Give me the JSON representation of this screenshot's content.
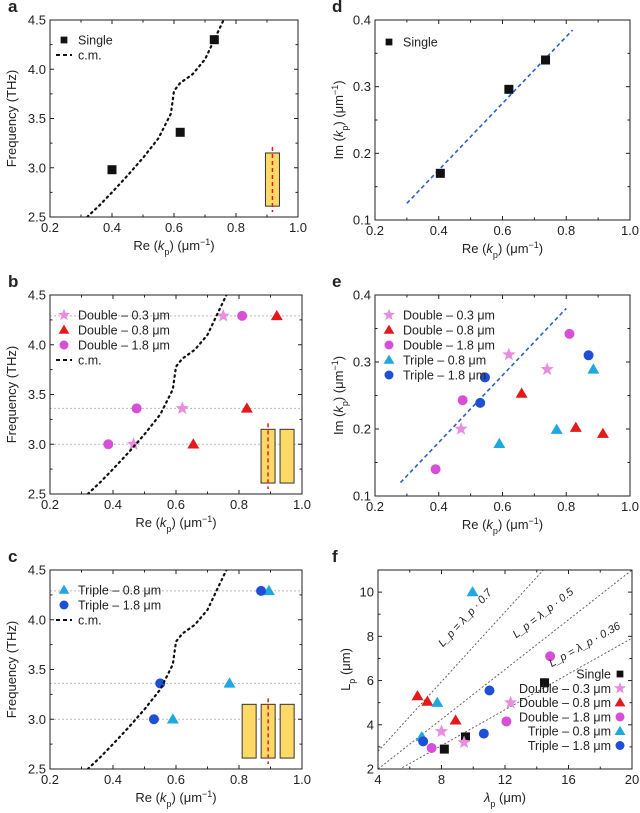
{
  "colors": {
    "single": "#111111",
    "double_03": "#e88ee0",
    "double_08": "#e31a1c",
    "double_18": "#d64fd6",
    "triple_08": "#1fa8e0",
    "triple_18": "#1f4fd6",
    "cm_line": "#111111",
    "fit_line": "#2b5fc4",
    "gridline": "#bbbbbb",
    "antenna_fill": "#ffd966",
    "antenna_stroke": "#333333",
    "antenna_dash": "#e31a1c"
  },
  "chart_data": [
    {
      "panel": "a",
      "type": "scatter",
      "xlabel": "Re (k_p) (μm⁻¹)",
      "ylabel": "Frequency (THz)",
      "xlim": [
        0.2,
        1.0
      ],
      "ylim": [
        2.5,
        4.5
      ],
      "xticks": [
        "0.2",
        "0.4",
        "0.6",
        "0.8",
        "1.0"
      ],
      "yticks": [
        "2.5",
        "3.0",
        "3.5",
        "4.0",
        "4.5"
      ],
      "legend_position": "top-left",
      "antenna_bars": 1,
      "series": [
        {
          "name": "Single",
          "marker": "square",
          "color_key": "single",
          "x": [
            0.4,
            0.62,
            0.73
          ],
          "y": [
            2.98,
            3.36,
            4.3
          ]
        },
        {
          "name": "c.m.",
          "marker": "dotted-line",
          "color_key": "cm_line",
          "x": [
            0.32,
            0.36,
            0.4,
            0.45,
            0.5,
            0.55,
            0.59,
            0.6,
            0.62,
            0.66,
            0.7,
            0.73,
            0.76
          ],
          "y": [
            2.5,
            2.62,
            2.75,
            2.92,
            3.1,
            3.3,
            3.55,
            3.78,
            3.86,
            3.95,
            4.1,
            4.3,
            4.5
          ]
        }
      ]
    },
    {
      "panel": "b",
      "type": "scatter",
      "xlabel": "Re (k_p) (μm⁻¹)",
      "ylabel": "Frequency (THz)",
      "xlim": [
        0.2,
        1.0
      ],
      "ylim": [
        2.5,
        4.5
      ],
      "xticks": [
        "0.2",
        "0.4",
        "0.6",
        "0.8",
        "1.0"
      ],
      "yticks": [
        "2.5",
        "3.0",
        "3.5",
        "4.0",
        "4.5"
      ],
      "legend_position": "top-left",
      "hlines": [
        3.0,
        3.36,
        4.29
      ],
      "antenna_bars": 2,
      "series": [
        {
          "name": "Double – 0.3 μm",
          "marker": "star",
          "color_key": "double_03",
          "x": [
            0.465,
            0.62,
            0.75
          ],
          "y": [
            3.0,
            3.36,
            4.29
          ]
        },
        {
          "name": "Double – 0.8 μm",
          "marker": "triangle",
          "color_key": "double_08",
          "x": [
            0.655,
            0.825,
            0.92
          ],
          "y": [
            3.0,
            3.36,
            4.29
          ]
        },
        {
          "name": "Double – 1.8 μm",
          "marker": "circle",
          "color_key": "double_18",
          "x": [
            0.385,
            0.475,
            0.81
          ],
          "y": [
            3.0,
            3.36,
            4.29
          ]
        },
        {
          "name": "c.m.",
          "marker": "dotted-line",
          "color_key": "cm_line",
          "x": [
            0.32,
            0.36,
            0.4,
            0.45,
            0.5,
            0.55,
            0.59,
            0.6,
            0.62,
            0.66,
            0.7,
            0.73,
            0.76
          ],
          "y": [
            2.5,
            2.62,
            2.75,
            2.92,
            3.1,
            3.3,
            3.55,
            3.78,
            3.86,
            3.95,
            4.1,
            4.3,
            4.5
          ]
        }
      ]
    },
    {
      "panel": "c",
      "type": "scatter",
      "xlabel": "Re (k_p) (μm⁻¹)",
      "ylabel": "Frequency (THz)",
      "xlim": [
        0.2,
        1.0
      ],
      "ylim": [
        2.5,
        4.5
      ],
      "xticks": [
        "0.2",
        "0.4",
        "0.6",
        "0.8",
        "1.0"
      ],
      "yticks": [
        "2.5",
        "3.0",
        "3.5",
        "4.0",
        "4.5"
      ],
      "legend_position": "top-left",
      "hlines": [
        3.0,
        3.36,
        4.29
      ],
      "antenna_bars": 3,
      "series": [
        {
          "name": "Triple – 0.8 μm",
          "marker": "triangle",
          "color_key": "triple_08",
          "x": [
            0.59,
            0.77,
            0.895
          ],
          "y": [
            3.0,
            3.36,
            4.29
          ]
        },
        {
          "name": "Triple – 1.8 μm",
          "marker": "circle",
          "color_key": "triple_18",
          "x": [
            0.53,
            0.55,
            0.87
          ],
          "y": [
            3.0,
            3.36,
            4.29
          ]
        },
        {
          "name": "c.m.",
          "marker": "dotted-line",
          "color_key": "cm_line",
          "x": [
            0.32,
            0.36,
            0.4,
            0.45,
            0.5,
            0.55,
            0.59,
            0.6,
            0.62,
            0.66,
            0.7,
            0.73,
            0.76
          ],
          "y": [
            2.5,
            2.62,
            2.75,
            2.92,
            3.1,
            3.3,
            3.55,
            3.78,
            3.86,
            3.95,
            4.1,
            4.3,
            4.5
          ]
        }
      ]
    },
    {
      "panel": "d",
      "type": "scatter",
      "xlabel": "Re (k_p) (μm⁻¹)",
      "ylabel": "Im (k_p) (μm⁻¹)",
      "xlim": [
        0.2,
        1.0
      ],
      "ylim": [
        0.1,
        0.4
      ],
      "xticks": [
        "0.2",
        "0.4",
        "0.6",
        "0.8",
        "1.0"
      ],
      "yticks": [
        "0.1",
        "0.2",
        "0.3",
        "0.4"
      ],
      "legend_position": "top-left",
      "fit_line": {
        "x": [
          0.3,
          0.82
        ],
        "y": [
          0.125,
          0.385
        ]
      },
      "series": [
        {
          "name": "Single",
          "marker": "square",
          "color_key": "single",
          "x": [
            0.405,
            0.62,
            0.735
          ],
          "y": [
            0.17,
            0.296,
            0.34
          ]
        }
      ]
    },
    {
      "panel": "e",
      "type": "scatter",
      "xlabel": "Re (k_p) (μm⁻¹)",
      "ylabel": "Im (k_p) (μm⁻¹)",
      "xlim": [
        0.2,
        1.0
      ],
      "ylim": [
        0.1,
        0.4
      ],
      "xticks": [
        "0.2",
        "0.4",
        "0.6",
        "0.8",
        "1.0"
      ],
      "yticks": [
        "0.1",
        "0.2",
        "0.3",
        "0.4"
      ],
      "legend_position": "top-left",
      "fit_line": {
        "x": [
          0.28,
          0.8
        ],
        "y": [
          0.12,
          0.38
        ]
      },
      "series": [
        {
          "name": "Double – 0.3 μm",
          "marker": "star",
          "color_key": "double_03",
          "x": [
            0.47,
            0.62,
            0.74
          ],
          "y": [
            0.2,
            0.311,
            0.289
          ]
        },
        {
          "name": "Double – 0.8 μm",
          "marker": "triangle",
          "color_key": "double_08",
          "x": [
            0.66,
            0.83,
            0.915
          ],
          "y": [
            0.253,
            0.202,
            0.193
          ]
        },
        {
          "name": "Double – 1.8 μm",
          "marker": "circle",
          "color_key": "double_18",
          "x": [
            0.39,
            0.475,
            0.81
          ],
          "y": [
            0.14,
            0.243,
            0.342
          ]
        },
        {
          "name": "Triple – 0.8 μm",
          "marker": "triangle",
          "color_key": "triple_08",
          "x": [
            0.59,
            0.77,
            0.885
          ],
          "y": [
            0.178,
            0.199,
            0.289
          ]
        },
        {
          "name": "Triple – 1.8 μm",
          "marker": "circle",
          "color_key": "triple_18",
          "x": [
            0.53,
            0.545,
            0.87
          ],
          "y": [
            0.239,
            0.277,
            0.31
          ]
        }
      ]
    },
    {
      "panel": "f",
      "type": "scatter",
      "xlabel": "λ_p (μm)",
      "ylabel": "L_p (μm)",
      "xlim": [
        4,
        22
      ],
      "ylim": [
        2,
        11
      ],
      "xticks": [
        "4",
        "8",
        "12",
        "16",
        "20"
      ],
      "yticks": [
        "2",
        "4",
        "6",
        "8",
        "10"
      ],
      "legend_position": "bottom-right",
      "reference_lines": [
        {
          "label": "L_p = λ_p · 0.7",
          "slope": 0.7
        },
        {
          "label": "L_p = λ_p · 0.5",
          "slope": 0.5
        },
        {
          "label": "L_p = λ_p · 0.36",
          "slope": 0.36
        }
      ],
      "series": [
        {
          "name": "Single",
          "marker": "square",
          "color_key": "single",
          "x": [
            8.7,
            10.2,
            15.8
          ],
          "y": [
            2.9,
            3.45,
            5.9
          ]
        },
        {
          "name": "Double – 0.3 μm",
          "marker": "star",
          "color_key": "double_03",
          "x": [
            8.5,
            10.1,
            13.4
          ],
          "y": [
            3.7,
            3.2,
            5.0
          ]
        },
        {
          "name": "Double – 0.8 μm",
          "marker": "triangle",
          "color_key": "double_08",
          "x": [
            6.8,
            7.5,
            9.5
          ],
          "y": [
            5.3,
            5.05,
            4.2
          ]
        },
        {
          "name": "Double – 1.8 μm",
          "marker": "circle",
          "color_key": "double_18",
          "x": [
            7.8,
            13.1,
            16.2
          ],
          "y": [
            2.95,
            4.15,
            7.1
          ]
        },
        {
          "name": "Triple – 0.8 μm",
          "marker": "triangle",
          "color_key": "triple_08",
          "x": [
            7.1,
            8.2,
            10.7
          ],
          "y": [
            3.45,
            5.0,
            10.0
          ]
        },
        {
          "name": "Triple – 1.8 μm",
          "marker": "circle",
          "color_key": "triple_18",
          "x": [
            7.2,
            11.5,
            11.9
          ],
          "y": [
            3.25,
            3.6,
            5.55
          ]
        }
      ]
    }
  ],
  "panel_labels": [
    "a",
    "b",
    "c",
    "d",
    "e",
    "f"
  ],
  "labels": {
    "xlabel_re_main": "Re (",
    "k": "k",
    "sub_p": "p",
    "unit_um_inv": ") (μm",
    "sup_minus1": "−1",
    "close_paren": ")",
    "ylabel_freq": "Frequency (THz)",
    "ylabel_im_main": "Im (",
    "lambda": "λ",
    "unit_um": " (μm)",
    "L": "L"
  }
}
